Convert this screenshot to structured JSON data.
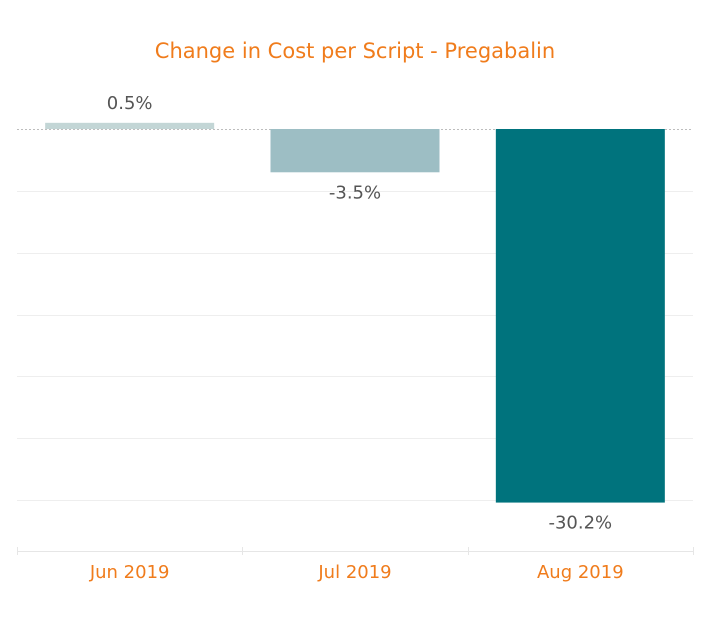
{
  "chart_data": {
    "type": "bar",
    "title": "Change in Cost per Script - Pregabalin",
    "categories": [
      "Jun 2019",
      "Jul 2019",
      "Aug 2019"
    ],
    "values": [
      0.5,
      -3.5,
      -30.2
    ],
    "value_labels": [
      "0.5%",
      "-3.5%",
      "-30.2%"
    ],
    "colors": [
      "#c3d6d6",
      "#9dbec4",
      "#00737d"
    ],
    "ylim": [
      -34.4,
      2.1
    ],
    "gridlines": [
      0,
      -5,
      -10,
      -15,
      -20,
      -25,
      -30
    ],
    "xlabel": "",
    "ylabel": "",
    "legend": "none",
    "grid": true
  }
}
